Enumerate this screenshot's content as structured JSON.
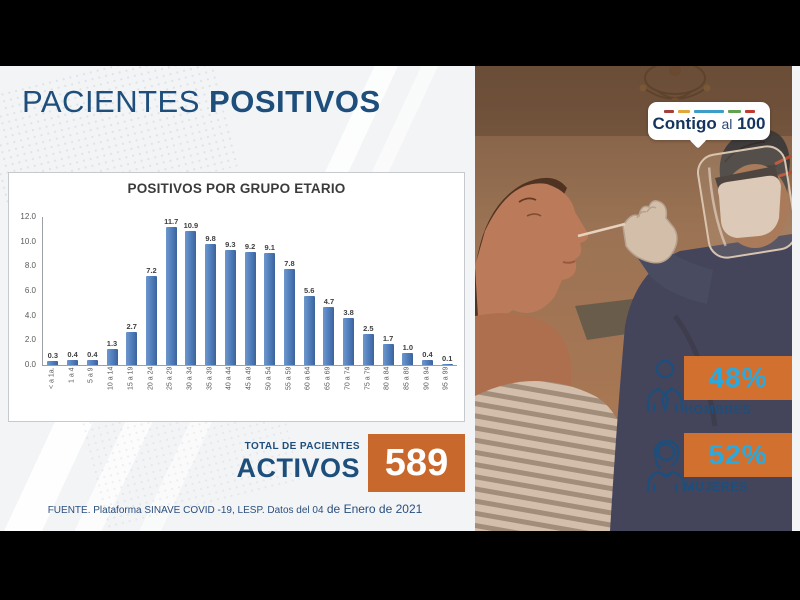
{
  "page_title": {
    "regular": "PACIENTES",
    "bold": "POSITIVOS"
  },
  "chart_data": {
    "type": "bar",
    "title": "POSITIVOS POR GRUPO ETARIO",
    "categories": [
      "< a 1a.",
      "1 a 4",
      "5 a 9",
      "10 a 14",
      "15 a 19",
      "20 a 24",
      "25 a 29",
      "30 a 34",
      "35 a 39",
      "40 a 44",
      "45 a 49",
      "50 a 54",
      "55 a 59",
      "60 a 64",
      "65 a 69",
      "70 a 74",
      "75 a 79",
      "80 a 84",
      "85 a 89",
      "90 a 94",
      "95 a 99"
    ],
    "values": [
      0.3,
      0.4,
      0.4,
      1.3,
      2.7,
      7.2,
      11.7,
      10.9,
      9.8,
      9.3,
      9.2,
      9.1,
      7.8,
      5.6,
      4.7,
      3.8,
      2.5,
      1.7,
      1.0,
      0.4,
      0.1
    ],
    "xlabel": "",
    "ylabel": "",
    "ylim": [
      0,
      12
    ],
    "ytick_step": 2,
    "grid": false,
    "legend": "none",
    "bar_color": "#4e7cba",
    "value_labels": true
  },
  "total": {
    "label_small": "TOTAL DE PACIENTES",
    "label_big": "ACTIVOS",
    "value": "589"
  },
  "footer": {
    "source": "FUENTE. Plataforma SINAVE COVID -19, LESP. Datos del 04",
    "date": " de Enero de 2021"
  },
  "logo": {
    "word_bold_1": "Contigo",
    "word_light": "al",
    "word_bold_2": "100",
    "dashes": [
      {
        "w": 10,
        "color": "#a53f38"
      },
      {
        "w": 12,
        "color": "#dfa83a"
      },
      {
        "w": 30,
        "color": "#3d9dc9"
      },
      {
        "w": 13,
        "color": "#62a14d"
      },
      {
        "w": 10,
        "color": "#bf3b30"
      }
    ]
  },
  "stats": [
    {
      "icon": "man-icon",
      "percent": "48%",
      "label": "HOMBRES"
    },
    {
      "icon": "woman-icon",
      "percent": "52%",
      "label": "MUJERES"
    }
  ],
  "colors": {
    "title_navy": "#1d4e7c",
    "accent_orange": "#c9682c",
    "percent_cyan": "#2aa9df",
    "bar_blue": "#4e7cba",
    "letterbox": "#000000"
  }
}
